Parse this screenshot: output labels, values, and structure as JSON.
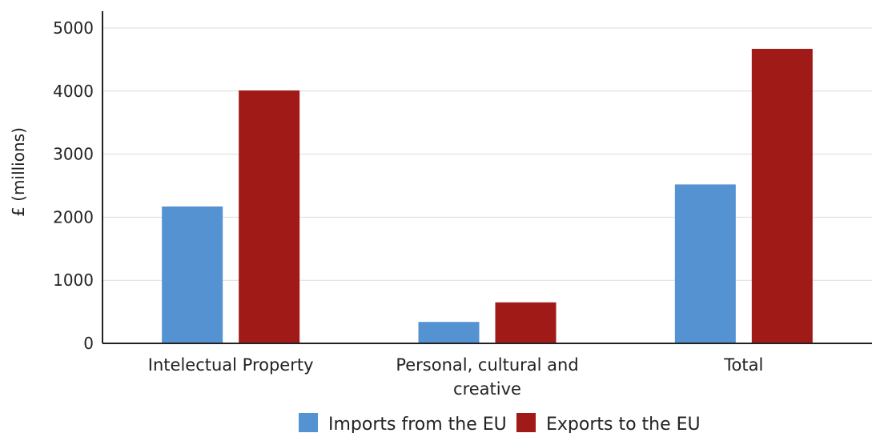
{
  "chart_data": {
    "type": "bar",
    "title": "",
    "xlabel": "",
    "ylabel": "£ (millions)",
    "categories": [
      [
        "Intelectual Property"
      ],
      [
        "Personal, cultural and",
        "creative"
      ],
      [
        "Total"
      ]
    ],
    "series": [
      {
        "name": "Imports from the EU",
        "color": "#5592d2",
        "values": [
          2170,
          340,
          2520
        ]
      },
      {
        "name": "Exports to the EU",
        "color": "#a01a18",
        "values": [
          4010,
          650,
          4670
        ]
      }
    ],
    "ylim": [
      0,
      5000
    ],
    "yticks": [
      0,
      1000,
      2000,
      3000,
      4000,
      5000
    ],
    "grid": true,
    "legend": "bottom"
  }
}
